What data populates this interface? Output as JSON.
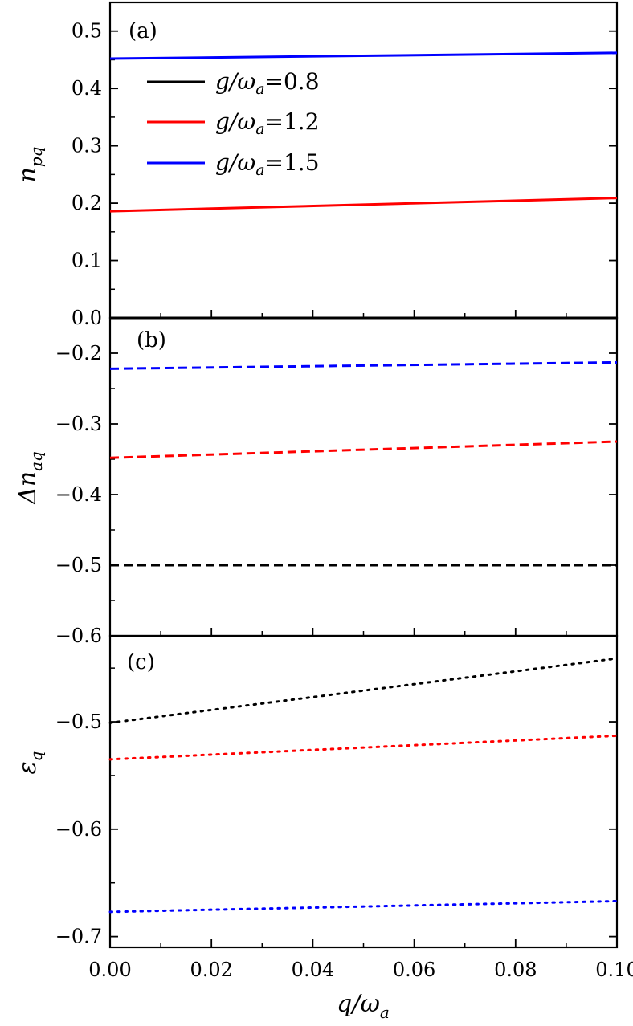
{
  "chart_data": [
    {
      "panel": "(a)",
      "type": "line",
      "ylabel": "n_pq",
      "ylim": [
        0.0,
        0.55
      ],
      "yticks": [
        0.0,
        0.1,
        0.2,
        0.3,
        0.4,
        0.5
      ],
      "ytick_labels": [
        "0.0",
        "0.1",
        "0.2",
        "0.3",
        "0.4",
        "0.5"
      ],
      "x": [
        0.0,
        0.1
      ],
      "series": [
        {
          "key": "g08",
          "color": "#000000",
          "style": "solid",
          "values": [
            0.0,
            0.0
          ]
        },
        {
          "key": "g12",
          "color": "#ff0000",
          "style": "solid",
          "values": [
            0.186,
            0.209
          ]
        },
        {
          "key": "g15",
          "color": "#0000ff",
          "style": "solid",
          "values": [
            0.452,
            0.462
          ]
        }
      ]
    },
    {
      "panel": "(b)",
      "type": "line",
      "ylabel": "Δn_aq",
      "ylim": [
        -0.6,
        -0.15
      ],
      "yticks": [
        -0.6,
        -0.5,
        -0.4,
        -0.3,
        -0.2
      ],
      "ytick_labels": [
        "−0.6",
        "−0.5",
        "−0.4",
        "−0.3",
        "−0.2"
      ],
      "x": [
        0.0,
        0.1
      ],
      "series": [
        {
          "key": "g08",
          "color": "#000000",
          "style": "dashed",
          "values": [
            -0.5,
            -0.5
          ]
        },
        {
          "key": "g12",
          "color": "#ff0000",
          "style": "dashed",
          "values": [
            -0.348,
            -0.325
          ]
        },
        {
          "key": "g15",
          "color": "#0000ff",
          "style": "dashed",
          "values": [
            -0.222,
            -0.213
          ]
        }
      ]
    },
    {
      "panel": "(c)",
      "type": "line",
      "ylabel": "ε_q",
      "ylim": [
        -0.71,
        -0.42
      ],
      "yticks": [
        -0.7,
        -0.6,
        -0.5
      ],
      "ytick_labels": [
        "−0.7",
        "−0.6",
        "−0.5"
      ],
      "x": [
        0.0,
        0.1
      ],
      "series": [
        {
          "key": "g08",
          "color": "#000000",
          "style": "dotted",
          "values": [
            -0.501,
            -0.441
          ]
        },
        {
          "key": "g12",
          "color": "#ff0000",
          "style": "dotted",
          "values": [
            -0.535,
            -0.513
          ]
        },
        {
          "key": "g15",
          "color": "#0000ff",
          "style": "dotted",
          "values": [
            -0.677,
            -0.667
          ]
        }
      ]
    }
  ],
  "x_axis": {
    "label": "q/ω_a",
    "xlim": [
      0.0,
      0.1
    ],
    "ticks": [
      0.0,
      0.02,
      0.04,
      0.06,
      0.08,
      0.1
    ],
    "tick_labels": [
      "0.00",
      "0.02",
      "0.04",
      "0.06",
      "0.08",
      "0.10"
    ]
  },
  "legend": {
    "placement": "upper-left of panel (a)",
    "entries": [
      {
        "prefix": "g/ω",
        "sub": "a",
        "value": "=0.8",
        "color": "#000000"
      },
      {
        "prefix": "g/ω",
        "sub": "a",
        "value": "=1.2",
        "color": "#ff0000"
      },
      {
        "prefix": "g/ω",
        "sub": "a",
        "value": "=1.5",
        "color": "#0000ff"
      }
    ]
  },
  "labels": {
    "panel_a": "(a)",
    "panel_b": "(b)",
    "panel_c": "(c)",
    "ylabel_a_main": "n",
    "ylabel_a_sub": "pq",
    "ylabel_b_main": "Δn",
    "ylabel_b_sub": "aq",
    "ylabel_c_main": "ε",
    "ylabel_c_sub": "q",
    "xlabel_main": "q/ω",
    "xlabel_sub": "a"
  }
}
